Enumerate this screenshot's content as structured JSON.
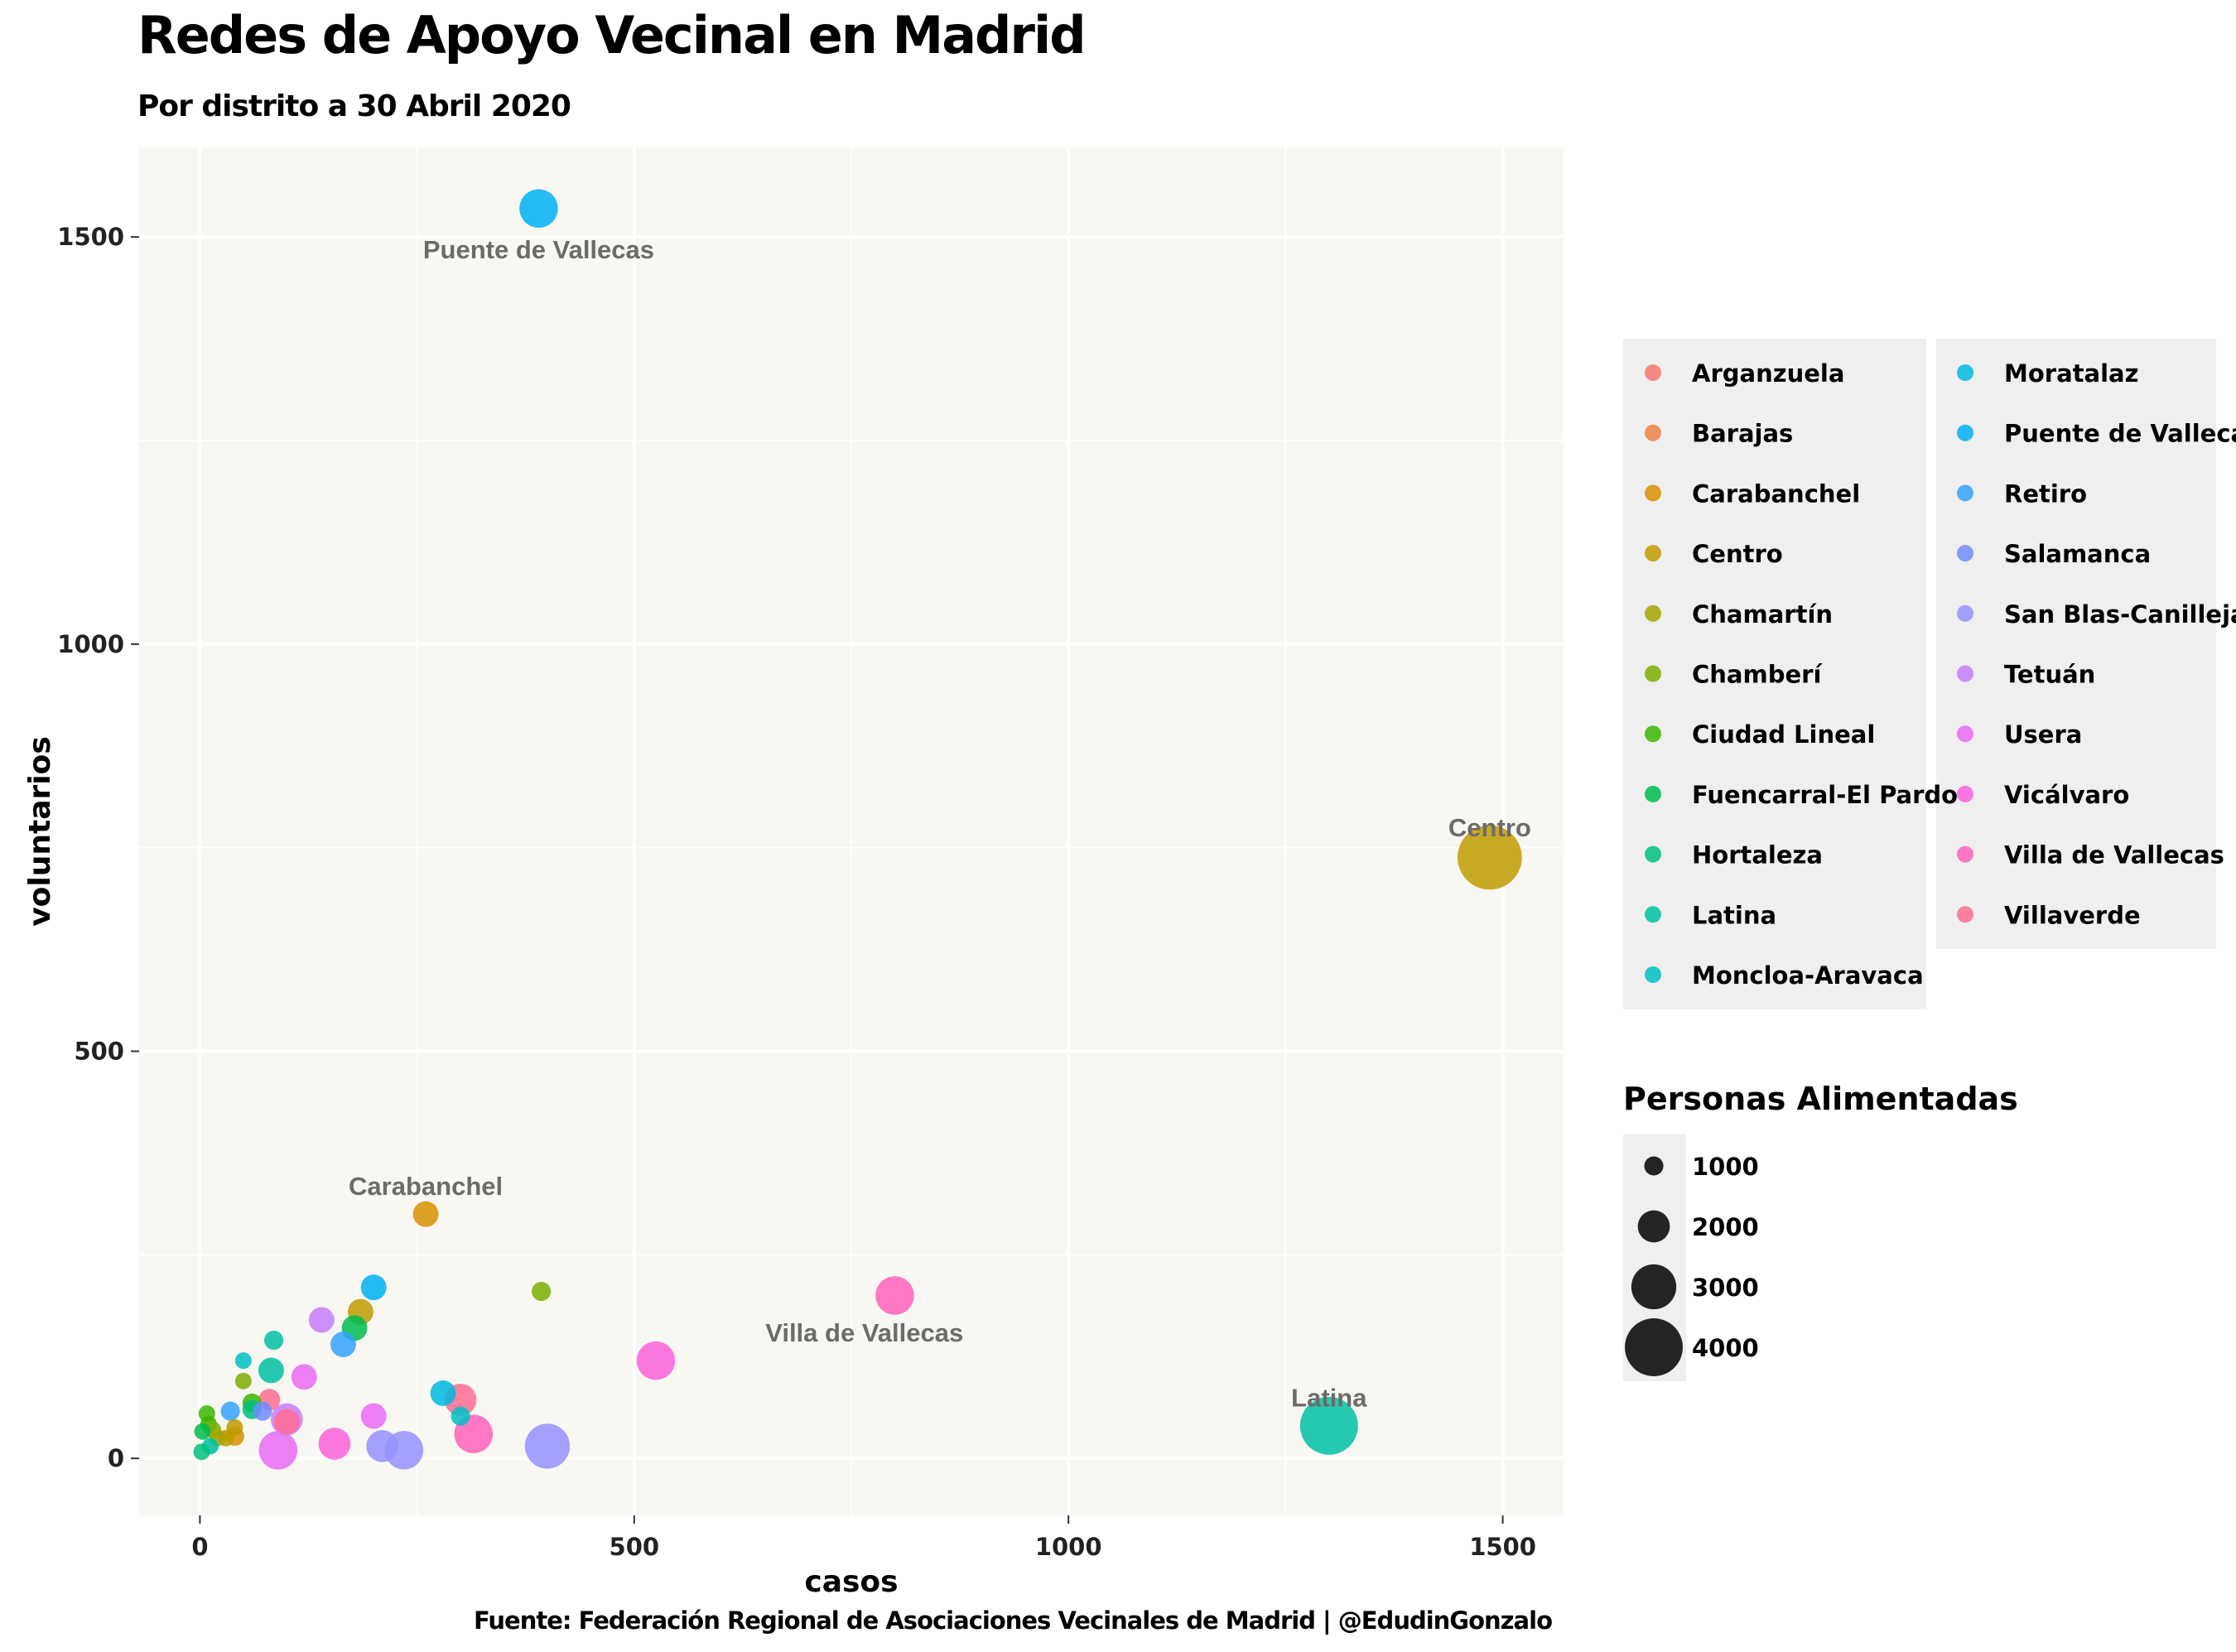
{
  "title": "Redes de Apoyo Vecinal en Madrid",
  "subtitle": "Por distrito a 30 Abril 2020",
  "caption": "Fuente: Federación Regional de Asociaciones Vecinales de Madrid | @EdudinGonzalo",
  "chart_data": {
    "type": "scatter",
    "xlabel": "casos",
    "ylabel": "voluntarios",
    "xlim": [
      -70,
      1570
    ],
    "ylim": [
      -70,
      1610
    ],
    "xticks": [
      0,
      500,
      1000,
      1500
    ],
    "yticks": [
      0,
      500,
      1000,
      1500
    ],
    "grid": true,
    "legend_position": "right",
    "color_legend_entries": [
      "Arganzuela",
      "Barajas",
      "Carabanchel",
      "Centro",
      "Chamartín",
      "Chamberí",
      "Ciudad Lineal",
      "Fuencarral-El Pardo",
      "Hortaleza",
      "Latina",
      "Moncloa-Aravaca",
      "Moratalaz",
      "Puente de Vallecas",
      "Retiro",
      "Salamanca",
      "San Blas-Canillejas",
      "Tetuán",
      "Usera",
      "Vicálvaro",
      "Villa de Vallecas",
      "Villaverde"
    ],
    "district_colors": {
      "Arganzuela": "#F8766D",
      "Barajas": "#EE8044",
      "Carabanchel": "#D89000",
      "Centro": "#C09B00",
      "Chamartín": "#A3A500",
      "Chamberí": "#7CAE00",
      "Ciudad Lineal": "#39B600",
      "Fuencarral-El Pardo": "#00BB4E",
      "Hortaleza": "#00BF7D",
      "Latina": "#00C1A3",
      "Moncloa-Aravaca": "#00BFC4",
      "Moratalaz": "#00BAE0",
      "Puente de Vallecas": "#00B0F6",
      "Retiro": "#35A2FF",
      "Salamanca": "#6F8CFF",
      "San Blas-Canillejas": "#9590FF",
      "Tetuán": "#C77CFF",
      "Usera": "#E76BF3",
      "Vicálvaro": "#FA62DB",
      "Villa de Vallecas": "#FF62BC",
      "Villaverde": "#FF6C91"
    },
    "size_legend": {
      "title": "Personas Alimentadas",
      "values": [
        1000,
        2000,
        3000,
        4000
      ]
    },
    "labeled_points": [
      {
        "text": "Puente de Vallecas",
        "x": 390,
        "y": 1485
      },
      {
        "text": "Centro",
        "x": 1485,
        "y": 775
      },
      {
        "text": "Carabanchel",
        "x": 260,
        "y": 335
      },
      {
        "text": "Villa de Vallecas",
        "x": 765,
        "y": 155
      },
      {
        "text": "Latina",
        "x": 1300,
        "y": 75
      }
    ],
    "points": [
      {
        "district": "Puente de Vallecas",
        "x": 390,
        "y": 1535,
        "size": 2500
      },
      {
        "district": "Centro",
        "x": 1485,
        "y": 738,
        "size": 4500
      },
      {
        "district": "Latina",
        "x": 1300,
        "y": 40,
        "size": 4000
      },
      {
        "district": "Villa de Vallecas",
        "x": 800,
        "y": 200,
        "size": 2500
      },
      {
        "district": "Vicálvaro",
        "x": 525,
        "y": 120,
        "size": 2500
      },
      {
        "district": "Carabanchel",
        "x": 260,
        "y": 300,
        "size": 1500
      },
      {
        "district": "Chamberí",
        "x": 393,
        "y": 205,
        "size": 1000
      },
      {
        "district": "Puente de Vallecas",
        "x": 200,
        "y": 210,
        "size": 1500
      },
      {
        "district": "Centro",
        "x": 185,
        "y": 180,
        "size": 1500
      },
      {
        "district": "Tetuán",
        "x": 140,
        "y": 170,
        "size": 1500
      },
      {
        "district": "Fuencarral-El Pardo",
        "x": 178,
        "y": 160,
        "size": 1500
      },
      {
        "district": "Retiro",
        "x": 165,
        "y": 140,
        "size": 1500
      },
      {
        "district": "Latina",
        "x": 85,
        "y": 145,
        "size": 1000
      },
      {
        "district": "Moncloa-Aravaca",
        "x": 50,
        "y": 120,
        "size": 800
      },
      {
        "district": "Latina",
        "x": 82,
        "y": 108,
        "size": 1500
      },
      {
        "district": "Usera",
        "x": 120,
        "y": 100,
        "size": 1500
      },
      {
        "district": "Chamberí",
        "x": 50,
        "y": 95,
        "size": 800
      },
      {
        "district": "Moratalaz",
        "x": 280,
        "y": 80,
        "size": 1500
      },
      {
        "district": "Villaverde",
        "x": 300,
        "y": 72,
        "size": 2000
      },
      {
        "district": "Villaverde",
        "x": 80,
        "y": 72,
        "size": 1200
      },
      {
        "district": "Ciudad Lineal",
        "x": 60,
        "y": 68,
        "size": 1000
      },
      {
        "district": "Hortaleza",
        "x": 60,
        "y": 60,
        "size": 1000
      },
      {
        "district": "Salamanca",
        "x": 72,
        "y": 58,
        "size": 1000
      },
      {
        "district": "Retiro",
        "x": 35,
        "y": 58,
        "size": 1000
      },
      {
        "district": "Ciudad Lineal",
        "x": 8,
        "y": 55,
        "size": 800
      },
      {
        "district": "Moncloa-Aravaca",
        "x": 300,
        "y": 52,
        "size": 1000
      },
      {
        "district": "Usera",
        "x": 200,
        "y": 52,
        "size": 1500
      },
      {
        "district": "Tetuán",
        "x": 100,
        "y": 48,
        "size": 2000
      },
      {
        "district": "Villaverde",
        "x": 100,
        "y": 45,
        "size": 1500
      },
      {
        "district": "Ciudad Lineal",
        "x": 10,
        "y": 42,
        "size": 800
      },
      {
        "district": "Centro",
        "x": 40,
        "y": 38,
        "size": 800
      },
      {
        "district": "Chamberí",
        "x": 15,
        "y": 35,
        "size": 800
      },
      {
        "district": "Fuencarral-El Pardo",
        "x": 3,
        "y": 33,
        "size": 800
      },
      {
        "district": "Villa de Vallecas",
        "x": 315,
        "y": 30,
        "size": 2500
      },
      {
        "district": "Carabanchel",
        "x": 40,
        "y": 27,
        "size": 1000
      },
      {
        "district": "Centro",
        "x": 30,
        "y": 25,
        "size": 800
      },
      {
        "district": "Chamartín",
        "x": 20,
        "y": 25,
        "size": 800
      },
      {
        "district": "Vicálvaro",
        "x": 155,
        "y": 18,
        "size": 2000
      },
      {
        "district": "San Blas-Canillejas",
        "x": 400,
        "y": 15,
        "size": 3000
      },
      {
        "district": "San Blas-Canillejas",
        "x": 210,
        "y": 15,
        "size": 2000
      },
      {
        "district": "Latina",
        "x": 12,
        "y": 15,
        "size": 800
      },
      {
        "district": "San Blas-Canillejas",
        "x": 235,
        "y": 10,
        "size": 2500
      },
      {
        "district": "Usera",
        "x": 90,
        "y": 10,
        "size": 2500
      },
      {
        "district": "Hortaleza",
        "x": 2,
        "y": 8,
        "size": 800
      }
    ]
  }
}
